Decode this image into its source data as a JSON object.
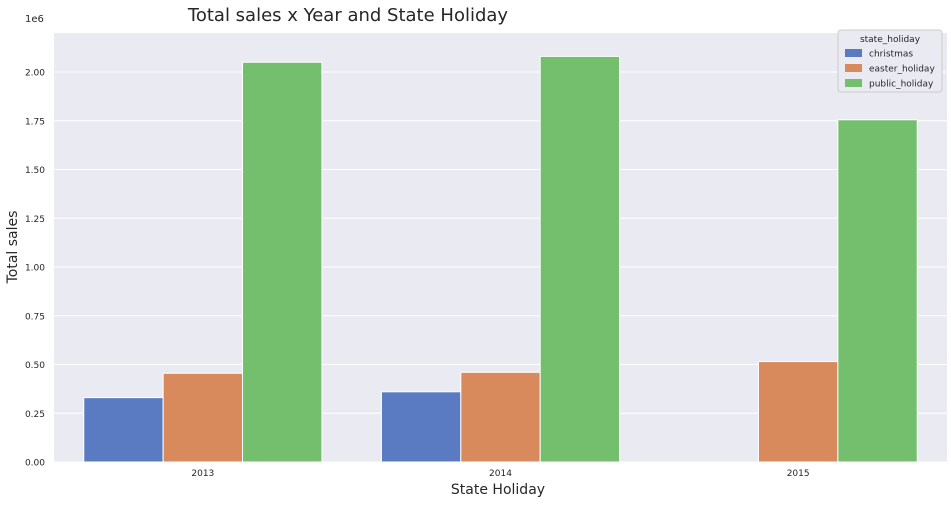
{
  "chart_data": {
    "type": "bar",
    "title": "Total sales x Year and State Holiday",
    "xlabel": "State Holiday",
    "ylabel": "Total sales",
    "y_scale_label": "1e6",
    "categories": [
      "2013",
      "2014",
      "2015"
    ],
    "ylim": [
      0,
      2200000
    ],
    "yticks": [
      0,
      250000,
      500000,
      750000,
      1000000,
      1250000,
      1500000,
      1750000,
      2000000
    ],
    "ytick_labels": [
      "0.00",
      "0.25",
      "0.50",
      "0.75",
      "1.00",
      "1.25",
      "1.50",
      "1.75",
      "2.00"
    ],
    "grid": true,
    "legend": {
      "title": "state_holiday",
      "placement": "top-right"
    },
    "series": [
      {
        "name": "christmas",
        "color": "#5a7bc1",
        "values": [
          330000,
          360000,
          null
        ]
      },
      {
        "name": "easter_holiday",
        "color": "#d98a5c",
        "values": [
          455000,
          460000,
          515000
        ]
      },
      {
        "name": "public_holiday",
        "color": "#74bf6e",
        "values": [
          2050000,
          2080000,
          1755000
        ]
      }
    ]
  }
}
